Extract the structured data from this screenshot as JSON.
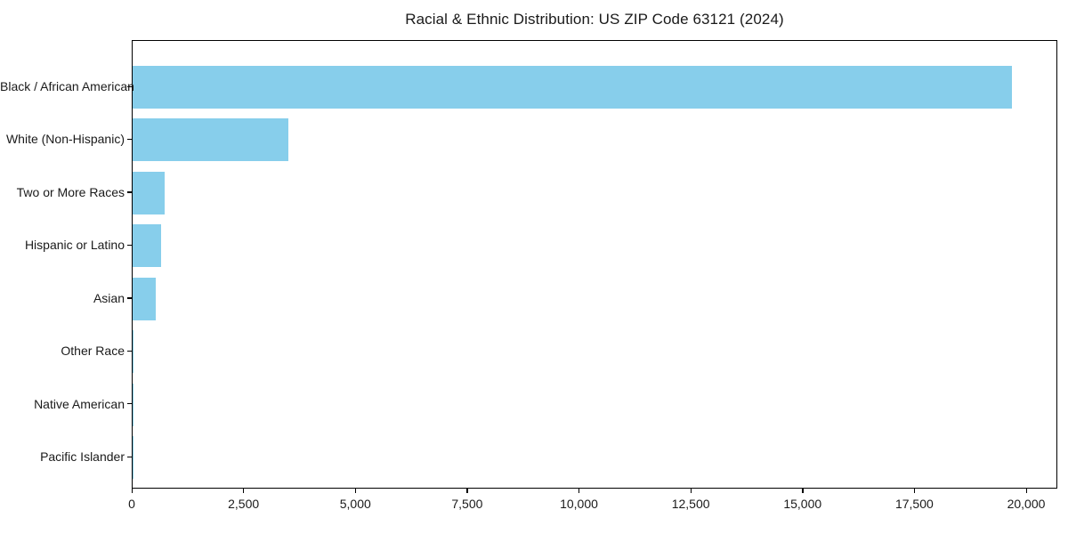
{
  "chart_data": {
    "type": "bar",
    "orientation": "horizontal",
    "title": "Racial & Ethnic Distribution: US ZIP Code 63121 (2024)",
    "categories": [
      "Black / African American",
      "White (Non-Hispanic)",
      "Two or More Races",
      "Hispanic or Latino",
      "Asian",
      "Other Race",
      "Native American",
      "Pacific Islander"
    ],
    "values": [
      19670,
      3480,
      720,
      640,
      520,
      20,
      12,
      4
    ],
    "xlabel": "",
    "ylabel": "",
    "xlim": [
      0,
      20700
    ],
    "x_ticks": [
      0,
      2500,
      5000,
      7500,
      10000,
      12500,
      15000,
      17500,
      20000
    ],
    "x_tick_labels": [
      "0",
      "2,500",
      "5,000",
      "7,500",
      "10,000",
      "12,500",
      "15,000",
      "17,500",
      "20,000"
    ],
    "bar_color": "#87ceeb",
    "frame_color": "#000000",
    "grid": false,
    "legend": null
  }
}
